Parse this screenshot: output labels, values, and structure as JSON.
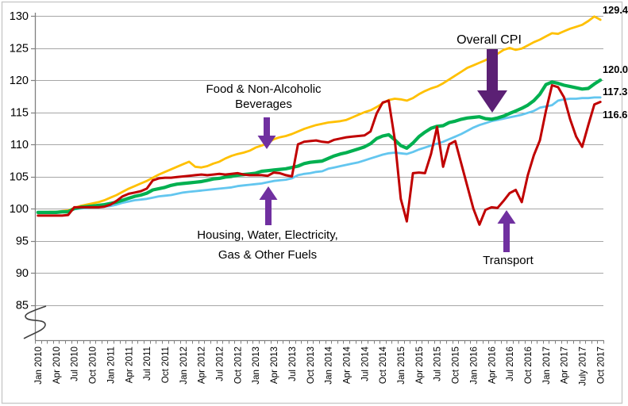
{
  "chart_data": {
    "type": "line",
    "title": "",
    "x_range_start": "Jan 2010",
    "x_range_end": "Oct 2017",
    "x_tick_every_months": 3,
    "x_tick_labels": [
      "Jan 2010",
      "Apr 2010",
      "Jul 2010",
      "Oct 2010",
      "Jan 2011",
      "Apr 2011",
      "Jul 2011",
      "Oct 2011",
      "Jan 2012",
      "Apr 2012",
      "Jul 2012",
      "Oct 2012",
      "Jan 2013",
      "Apr 2013",
      "Jul 2013",
      "Oct 2013",
      "Jan 2014",
      "Apr 2014",
      "Jul 2014",
      "Oct 2014",
      "Jan 2015",
      "Apr 2015",
      "Jul 2015",
      "Oct 2015",
      "Jan 2016",
      "Apr 2016",
      "Jul 2016",
      "Oct 2016",
      "Jan 2017",
      "Apr 2017",
      "July 2017",
      "Oct 2017"
    ],
    "y_axis": {
      "ticks": [
        85,
        90,
        95,
        100,
        105,
        110,
        115,
        120,
        125,
        130
      ],
      "axis_break": true,
      "grid": true
    },
    "series": [
      {
        "id": "food",
        "name": "Food & Non-Alcoholic Beverages",
        "color": "#FFC000",
        "end_label": "129.4",
        "values": [
          99.4,
          99.4,
          99.5,
          99.5,
          99.6,
          99.7,
          100.1,
          100.4,
          100.6,
          100.8,
          101.0,
          101.3,
          101.7,
          102.1,
          102.6,
          103.1,
          103.5,
          103.9,
          104.3,
          104.8,
          105.3,
          105.7,
          106.1,
          106.5,
          106.9,
          107.3,
          106.5,
          106.4,
          106.6,
          107.0,
          107.3,
          107.8,
          108.2,
          108.5,
          108.7,
          109.0,
          109.5,
          109.8,
          110.2,
          110.8,
          111.1,
          111.3,
          111.6,
          112.0,
          112.4,
          112.7,
          113.0,
          113.2,
          113.4,
          113.5,
          113.6,
          113.8,
          114.2,
          114.6,
          115.0,
          115.3,
          115.8,
          116.4,
          116.9,
          117.1,
          117.0,
          116.8,
          117.2,
          117.8,
          118.3,
          118.7,
          119.0,
          119.5,
          120.1,
          120.7,
          121.3,
          121.9,
          122.3,
          122.7,
          123.1,
          123.6,
          124.1,
          124.7,
          125.0,
          124.7,
          124.9,
          125.4,
          125.9,
          126.3,
          126.8,
          127.3,
          127.2,
          127.6,
          128.0,
          128.3,
          128.6,
          129.2,
          129.9,
          129.4
        ]
      },
      {
        "id": "housing",
        "name": "Housing, Water, Electricity, Gas & Other Fuels",
        "color": "#63C6EF",
        "end_label": "117.3",
        "values": [
          99.4,
          99.4,
          99.4,
          99.5,
          99.5,
          99.6,
          99.9,
          100.0,
          100.1,
          100.2,
          100.2,
          100.3,
          100.4,
          100.6,
          100.9,
          101.1,
          101.3,
          101.4,
          101.5,
          101.7,
          101.9,
          102.0,
          102.1,
          102.3,
          102.5,
          102.6,
          102.7,
          102.8,
          102.9,
          103.0,
          103.1,
          103.2,
          103.3,
          103.5,
          103.6,
          103.7,
          103.8,
          103.9,
          104.1,
          104.3,
          104.4,
          104.5,
          104.7,
          105.2,
          105.4,
          105.5,
          105.7,
          105.8,
          106.2,
          106.4,
          106.6,
          106.8,
          107.0,
          107.2,
          107.5,
          107.8,
          108.1,
          108.4,
          108.6,
          108.7,
          108.6,
          108.5,
          108.8,
          109.2,
          109.5,
          109.8,
          110.1,
          110.4,
          110.8,
          111.2,
          111.6,
          112.1,
          112.6,
          113.0,
          113.3,
          113.6,
          113.8,
          114.0,
          114.2,
          114.4,
          114.6,
          114.9,
          115.2,
          115.7,
          115.9,
          116.1,
          116.8,
          117.0,
          117.1,
          117.1,
          117.2,
          117.2,
          117.3,
          117.3
        ]
      },
      {
        "id": "overall-cpi",
        "name": "Overall CPI",
        "color": "#00B050",
        "end_label": "120.0",
        "values": [
          99.4,
          99.4,
          99.4,
          99.4,
          99.5,
          99.5,
          100.0,
          100.2,
          100.3,
          100.4,
          100.5,
          100.6,
          100.8,
          101.0,
          101.3,
          101.6,
          101.9,
          102.1,
          102.4,
          102.9,
          103.1,
          103.3,
          103.6,
          103.8,
          103.9,
          104.0,
          104.1,
          104.2,
          104.4,
          104.6,
          104.7,
          104.9,
          105.0,
          105.2,
          105.3,
          105.4,
          105.5,
          105.8,
          105.9,
          106.0,
          106.1,
          106.2,
          106.4,
          106.6,
          107.0,
          107.2,
          107.3,
          107.4,
          107.8,
          108.2,
          108.5,
          108.7,
          109.0,
          109.3,
          109.6,
          110.1,
          110.9,
          111.3,
          111.5,
          110.7,
          109.8,
          109.4,
          110.2,
          111.2,
          111.9,
          112.5,
          112.8,
          112.9,
          113.4,
          113.6,
          113.9,
          114.1,
          114.2,
          114.3,
          114.0,
          113.9,
          114.1,
          114.4,
          114.8,
          115.2,
          115.6,
          116.1,
          116.8,
          117.8,
          119.3,
          119.7,
          119.5,
          119.2,
          119.0,
          118.8,
          118.6,
          118.7,
          119.4,
          120.0
        ]
      },
      {
        "id": "transport",
        "name": "Transport",
        "color": "#C00000",
        "end_label": "116.6",
        "values": [
          98.9,
          98.9,
          98.9,
          98.9,
          98.9,
          99.0,
          100.2,
          100.2,
          100.2,
          100.2,
          100.2,
          100.3,
          100.6,
          101.2,
          101.9,
          102.3,
          102.5,
          102.7,
          103.1,
          104.4,
          104.7,
          104.8,
          104.8,
          104.9,
          105.0,
          105.1,
          105.2,
          105.3,
          105.2,
          105.3,
          105.4,
          105.3,
          105.4,
          105.5,
          105.3,
          105.2,
          105.2,
          105.2,
          105.1,
          105.6,
          105.5,
          105.2,
          105.0,
          110.0,
          110.4,
          110.5,
          110.6,
          110.4,
          110.3,
          110.7,
          110.9,
          111.1,
          111.2,
          111.3,
          111.4,
          112.0,
          114.8,
          116.5,
          116.8,
          110.8,
          101.5,
          98.0,
          105.5,
          105.6,
          105.5,
          108.5,
          112.7,
          106.5,
          110.0,
          110.5,
          107.0,
          103.5,
          100.0,
          97.5,
          99.8,
          100.2,
          100.1,
          101.2,
          102.4,
          102.9,
          101.0,
          105.2,
          108.3,
          110.6,
          115.2,
          119.2,
          118.9,
          117.3,
          113.9,
          111.2,
          109.6,
          113.0,
          116.2,
          116.6
        ]
      }
    ],
    "annotations": [
      {
        "id": "food",
        "lines": [
          "Food & Non-Alcoholic",
          "Beverages"
        ],
        "arrow": "down",
        "size": "small",
        "points_to": {
          "series": "food",
          "month": "Mar 2013"
        }
      },
      {
        "id": "cpi",
        "lines": [
          "Overall CPI"
        ],
        "arrow": "down",
        "size": "large",
        "points_to": {
          "series": "overall-cpi",
          "month": "Apr 2016"
        }
      },
      {
        "id": "housing",
        "lines": [
          "Housing, Water, Electricity,",
          "Gas & Other Fuels"
        ],
        "arrow": "up",
        "size": "small",
        "points_to": {
          "series": "housing",
          "month": "Apr 2013"
        }
      },
      {
        "id": "transport",
        "lines": [
          "Transport"
        ],
        "arrow": "up",
        "size": "small",
        "points_to": {
          "series": "transport",
          "month": "Jul 2016"
        }
      }
    ],
    "colors": {
      "small_arrow": "#7030A0",
      "large_arrow": "#5B2074",
      "gridline": "#A6A6A6",
      "axis": "#808080",
      "border": "#C9C9C9",
      "end_label_text": "#000000"
    }
  }
}
